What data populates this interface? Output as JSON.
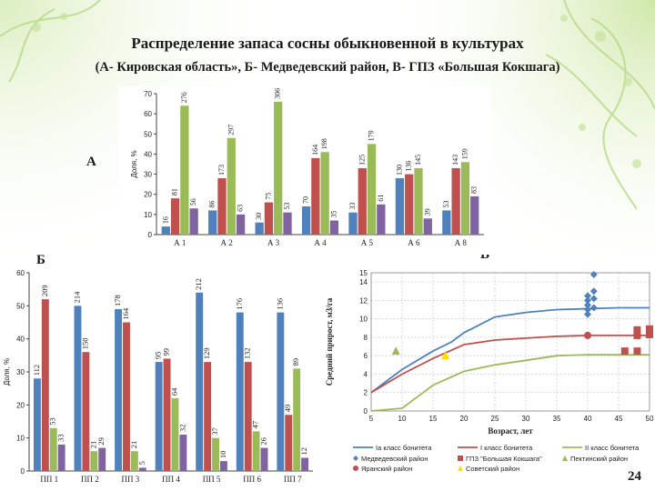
{
  "slide": {
    "title": "Распределение запаса сосны обыкновенной в культурах",
    "subtitle": "(А- Кировская область», Б- Медведевский район, В- ГПЗ «Большая Кокшага)",
    "page_number": "24",
    "panel_a": "А",
    "panel_b": "Б",
    "panel_c": "В"
  },
  "chart_data": [
    {
      "type": "bar",
      "panel": "А",
      "ylabel": "Доля, %",
      "ylim": [
        0,
        70
      ],
      "yticks": [
        0,
        10,
        20,
        30,
        40,
        50,
        60,
        70
      ],
      "categories": [
        "А 1",
        "А 2",
        "А 3",
        "А 4",
        "А 5",
        "А 6",
        "А 8"
      ],
      "series": [
        {
          "color": "#4f81bd",
          "values": [
            4,
            12,
            6,
            14,
            11,
            28,
            12
          ],
          "labels": [
            "16",
            "86",
            "30",
            "70",
            "33",
            "130",
            "53"
          ]
        },
        {
          "color": "#c0504d",
          "values": [
            18,
            28,
            16,
            38,
            33,
            30,
            33
          ],
          "labels": [
            "81",
            "173",
            "75",
            "164",
            "125",
            "136",
            "143"
          ]
        },
        {
          "color": "#9bbb59",
          "values": [
            64,
            48,
            66,
            41,
            45,
            33,
            36
          ],
          "labels": [
            "276",
            "297",
            "306",
            "198",
            "179",
            "145",
            "159"
          ]
        },
        {
          "color": "#8064a2",
          "values": [
            13,
            10,
            11,
            7,
            15,
            8,
            19
          ],
          "labels": [
            "56",
            "63",
            "53",
            "35",
            "61",
            "39",
            "83"
          ]
        }
      ]
    },
    {
      "type": "bar",
      "panel": "Б",
      "ylabel": "Доля, %",
      "ylim": [
        0,
        60
      ],
      "yticks": [
        0,
        10,
        20,
        30,
        40,
        50,
        60
      ],
      "categories": [
        "ПП 1",
        "ПП 2",
        "ПП 3",
        "ПП 4",
        "ПП 5",
        "ПП 6",
        "ПП 7"
      ],
      "series": [
        {
          "color": "#4f81bd",
          "values": [
            28,
            50,
            49,
            33,
            54,
            48,
            48
          ],
          "labels": [
            "112",
            "214",
            "178",
            "95",
            "212",
            "176",
            "136"
          ]
        },
        {
          "color": "#c0504d",
          "values": [
            52,
            36,
            45,
            34,
            33,
            33,
            17
          ],
          "labels": [
            "209",
            "150",
            "164",
            "99",
            "129",
            "132",
            "49"
          ]
        },
        {
          "color": "#9bbb59",
          "values": [
            13,
            6,
            6,
            22,
            10,
            12,
            31
          ],
          "labels": [
            "53",
            "21",
            "21",
            "64",
            "37",
            "47",
            "89"
          ]
        },
        {
          "color": "#8064a2",
          "values": [
            8,
            7,
            1,
            11,
            3,
            7,
            4
          ],
          "labels": [
            "33",
            "29",
            "5",
            "32",
            "10",
            "26",
            "12"
          ]
        }
      ]
    },
    {
      "type": "line",
      "panel": "В",
      "xlabel": "Возраст, лет",
      "ylabel": "Средний прирост, м3/га",
      "xlim": [
        5,
        50
      ],
      "ylim": [
        0,
        15
      ],
      "xticks": [
        5,
        10,
        15,
        20,
        25,
        30,
        35,
        40,
        45,
        50
      ],
      "yticks": [
        0,
        2,
        4,
        6,
        8,
        10,
        12,
        14,
        15
      ],
      "series": [
        {
          "name": "Ia класс бонитета",
          "color": "#4f81bd",
          "x": [
            5,
            10,
            15,
            18,
            20,
            25,
            30,
            35,
            40,
            45,
            50
          ],
          "y": [
            2,
            4.5,
            6.5,
            7.5,
            8.5,
            10.2,
            10.7,
            11,
            11.1,
            11.2,
            11.2
          ]
        },
        {
          "name": "I класс бонитета",
          "color": "#c0504d",
          "x": [
            5,
            10,
            15,
            20,
            25,
            30,
            35,
            40,
            45,
            50
          ],
          "y": [
            2,
            4,
            5.7,
            7.2,
            7.7,
            7.9,
            8.1,
            8.2,
            8.2,
            8.2
          ]
        },
        {
          "name": "II класс бонитета",
          "color": "#9bbb59",
          "x": [
            5,
            10,
            15,
            20,
            25,
            30,
            35,
            40,
            45,
            50
          ],
          "y": [
            0,
            0.3,
            2.8,
            4.3,
            5,
            5.5,
            6,
            6.1,
            6.1,
            6.1
          ]
        }
      ],
      "points": [
        {
          "name": "Медведевский район",
          "color": "#4f81bd",
          "marker": "diamond",
          "x": [
            40,
            40,
            40,
            40,
            40,
            41,
            41,
            41,
            41
          ],
          "y": [
            10.5,
            11,
            11.5,
            12,
            12.5,
            13,
            12.2,
            11.2,
            14.8
          ]
        },
        {
          "name": "ГПЗ \"Большая Кокшага\"",
          "color": "#c0504d",
          "marker": "square",
          "x": [
            46,
            48,
            48,
            48,
            50,
            50
          ],
          "y": [
            6.5,
            6.5,
            8.2,
            8.8,
            8.3,
            8.9
          ]
        },
        {
          "name": "Пектинский район",
          "color": "#9bbb59",
          "marker": "triangle",
          "x": [
            9
          ],
          "y": [
            6.5
          ]
        },
        {
          "name": "Яранский район",
          "color": "#c0504d",
          "marker": "circle",
          "x": [
            40
          ],
          "y": [
            8.2
          ]
        },
        {
          "name": "Советский район",
          "color": "#ffe000",
          "marker": "triangle",
          "x": [
            17
          ],
          "y": [
            6
          ]
        }
      ]
    }
  ]
}
